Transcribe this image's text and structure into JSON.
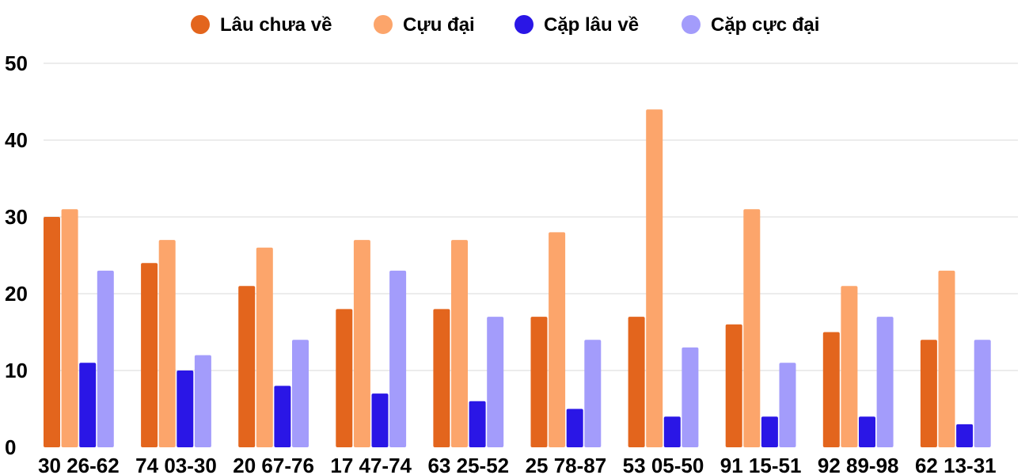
{
  "chart_data": {
    "type": "bar",
    "title": "",
    "xlabel": "",
    "ylabel": "",
    "ylim": [
      0,
      50
    ],
    "yticks": [
      0,
      10,
      20,
      30,
      40,
      50
    ],
    "grid": true,
    "legend_position": "top-center",
    "categories": [
      "30 26-62",
      "74 03-30",
      "20 67-76",
      "17 47-74",
      "63 25-52",
      "25 78-87",
      "53 05-50",
      "91 15-51",
      "92 89-98",
      "62 13-31"
    ],
    "series": [
      {
        "name": "Lâu chưa về",
        "color": "#e3651d",
        "values": [
          30,
          24,
          21,
          18,
          18,
          17,
          17,
          16,
          15,
          14
        ]
      },
      {
        "name": "Cựu đại",
        "color": "#fca56b",
        "values": [
          31,
          27,
          26,
          27,
          27,
          28,
          44,
          31,
          21,
          23
        ]
      },
      {
        "name": "Cặp lâu về",
        "color": "#2a16e6",
        "values": [
          11,
          10,
          8,
          7,
          6,
          5,
          4,
          4,
          4,
          3
        ]
      },
      {
        "name": "Cặp cực đại",
        "color": "#a39cfb",
        "values": [
          23,
          12,
          14,
          23,
          17,
          14,
          13,
          11,
          17,
          14
        ]
      }
    ]
  }
}
